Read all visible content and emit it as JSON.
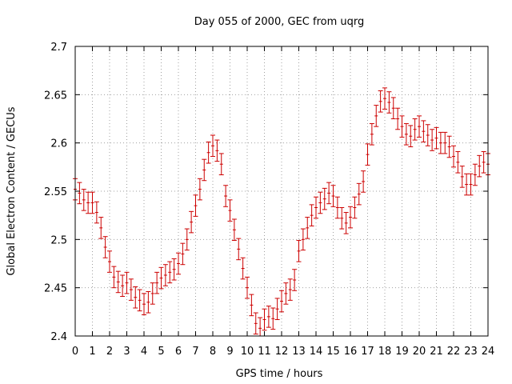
{
  "chart_data": {
    "type": "scatter",
    "title": "Day 055 of 2000, GEC from uqrg",
    "xlabel": "GPS time / hours",
    "ylabel": "Global Electron Content / GECUs",
    "xlim": [
      0,
      24
    ],
    "ylim": [
      2.4,
      2.7
    ],
    "xticks": [
      "0",
      "1",
      "2",
      "3",
      "4",
      "5",
      "6",
      "7",
      "8",
      "9",
      "10",
      "11",
      "12",
      "13",
      "14",
      "15",
      "16",
      "17",
      "18",
      "19",
      "20",
      "21",
      "22",
      "23",
      "24"
    ],
    "yticks": [
      "2.4",
      "2.45",
      "2.5",
      "2.55",
      "2.6",
      "2.65",
      "2.7"
    ],
    "grid": true,
    "color": "#cc0000",
    "error": 0.011,
    "series": [
      {
        "x": [
          0.0,
          0.25,
          0.5,
          0.75,
          1.0,
          1.25,
          1.5,
          1.75,
          2.0,
          2.25,
          2.5,
          2.75,
          3.0,
          3.25,
          3.5,
          3.75,
          4.0,
          4.25,
          4.5,
          4.75,
          5.0,
          5.25,
          5.5,
          5.75,
          6.0,
          6.25,
          6.5,
          6.75,
          7.0,
          7.25,
          7.5,
          7.75,
          8.0,
          8.25,
          8.5,
          8.75,
          9.0,
          9.25,
          9.5,
          9.75,
          10.0,
          10.25,
          10.5,
          10.75,
          11.0,
          11.25,
          11.5,
          11.75,
          12.0,
          12.25,
          12.5,
          12.75,
          13.0,
          13.25,
          13.5,
          13.75,
          14.0,
          14.25,
          14.5,
          14.75,
          15.0,
          15.25,
          15.5,
          15.75,
          16.0,
          16.25,
          16.5,
          16.75,
          17.0,
          17.25,
          17.5,
          17.75,
          18.0,
          18.25,
          18.5,
          18.75,
          19.0,
          19.25,
          19.5,
          19.75,
          20.0,
          20.25,
          20.5,
          20.75,
          21.0,
          21.25,
          21.5,
          21.75,
          22.0,
          22.25,
          22.5,
          22.75,
          23.0,
          23.25,
          23.5,
          23.75,
          24.0
        ],
        "y": [
          2.552,
          2.548,
          2.541,
          2.538,
          2.538,
          2.528,
          2.512,
          2.492,
          2.477,
          2.461,
          2.456,
          2.452,
          2.455,
          2.448,
          2.44,
          2.437,
          2.433,
          2.435,
          2.444,
          2.455,
          2.46,
          2.463,
          2.466,
          2.469,
          2.475,
          2.485,
          2.5,
          2.518,
          2.535,
          2.552,
          2.572,
          2.59,
          2.597,
          2.592,
          2.578,
          2.545,
          2.53,
          2.51,
          2.49,
          2.47,
          2.45,
          2.432,
          2.413,
          2.408,
          2.417,
          2.42,
          2.418,
          2.428,
          2.436,
          2.444,
          2.448,
          2.458,
          2.488,
          2.5,
          2.512,
          2.525,
          2.533,
          2.538,
          2.542,
          2.548,
          2.545,
          2.533,
          2.522,
          2.517,
          2.523,
          2.533,
          2.547,
          2.56,
          2.588,
          2.609,
          2.628,
          2.643,
          2.646,
          2.642,
          2.636,
          2.625,
          2.617,
          2.609,
          2.607,
          2.614,
          2.617,
          2.612,
          2.608,
          2.603,
          2.605,
          2.6,
          2.6,
          2.596,
          2.586,
          2.58,
          2.565,
          2.557,
          2.557,
          2.567,
          2.576,
          2.58,
          2.578
        ]
      }
    ]
  }
}
